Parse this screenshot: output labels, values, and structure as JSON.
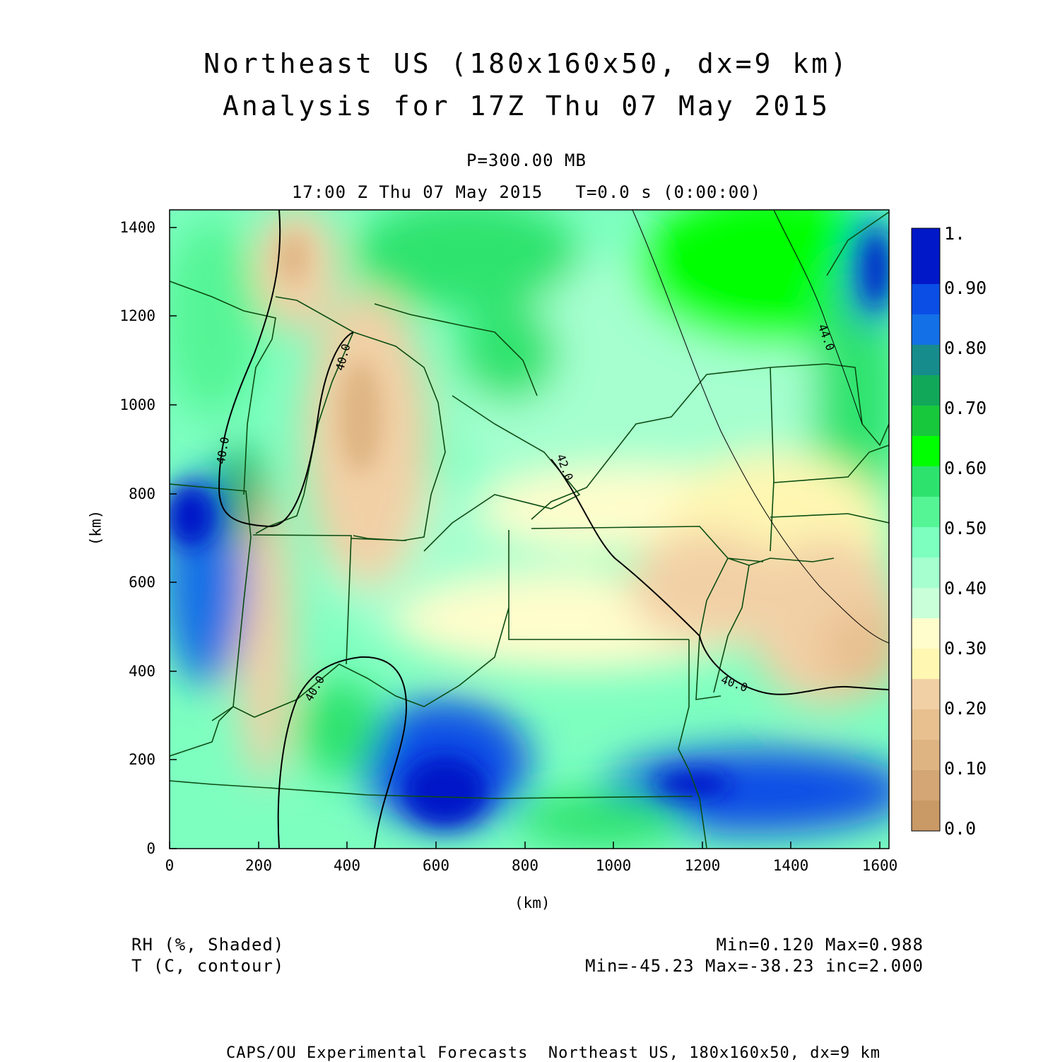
{
  "title": {
    "line1": "Northeast US (180x160x50, dx=9 km)",
    "line2": "Analysis for 17Z Thu 07 May 2015"
  },
  "subtitle": {
    "level": "P=300.00 MB",
    "time": "17:00 Z Thu 07 May 2015   T=0.0 s (0:00:00)"
  },
  "axes": {
    "xlabel": "(km)",
    "ylabel": "(km)",
    "xticks": [
      "0",
      "200",
      "400",
      "600",
      "800",
      "1000",
      "1200",
      "1400",
      "1600"
    ],
    "yticks": [
      "0",
      "200",
      "400",
      "600",
      "800",
      "1000",
      "1200",
      "1400"
    ],
    "xlim": [
      0,
      1620
    ],
    "ylim": [
      0,
      1440
    ]
  },
  "colorbar": {
    "labels": [
      "1.",
      "0.90",
      "0.80",
      "0.70",
      "0.60",
      "0.50",
      "0.40",
      "0.30",
      "0.20",
      "0.10",
      "0.0"
    ],
    "colors": [
      "#c99966",
      "#d4a676",
      "#deb482",
      "#e8c090",
      "#f2d0a6",
      "#fff7b2",
      "#fffdcc",
      "#c9ffd9",
      "#a5ffcf",
      "#7dffc0",
      "#55f596",
      "#2de36e",
      "#00ff00",
      "#18c83c",
      "#11a85a",
      "#178c8c",
      "#1470e6",
      "#0a4ee6",
      "#0018c8"
    ]
  },
  "legend": {
    "shaded": "RH (%, Shaded)",
    "contour": "T (C, contour)",
    "shaded_stats": "Min=0.120 Max=0.988",
    "contour_stats": "Min=-45.23 Max=-38.23 inc=2.000"
  },
  "contour_labels": [
    "40.0",
    "40.0",
    "40.0",
    "40.0",
    "42.0",
    "44.0"
  ],
  "footer": "CAPS/OU Experimental Forecasts  Northeast US, 180x160x50, dx=9 km",
  "colors": {
    "boundary": "#0b4d12",
    "contour": "#000000"
  }
}
